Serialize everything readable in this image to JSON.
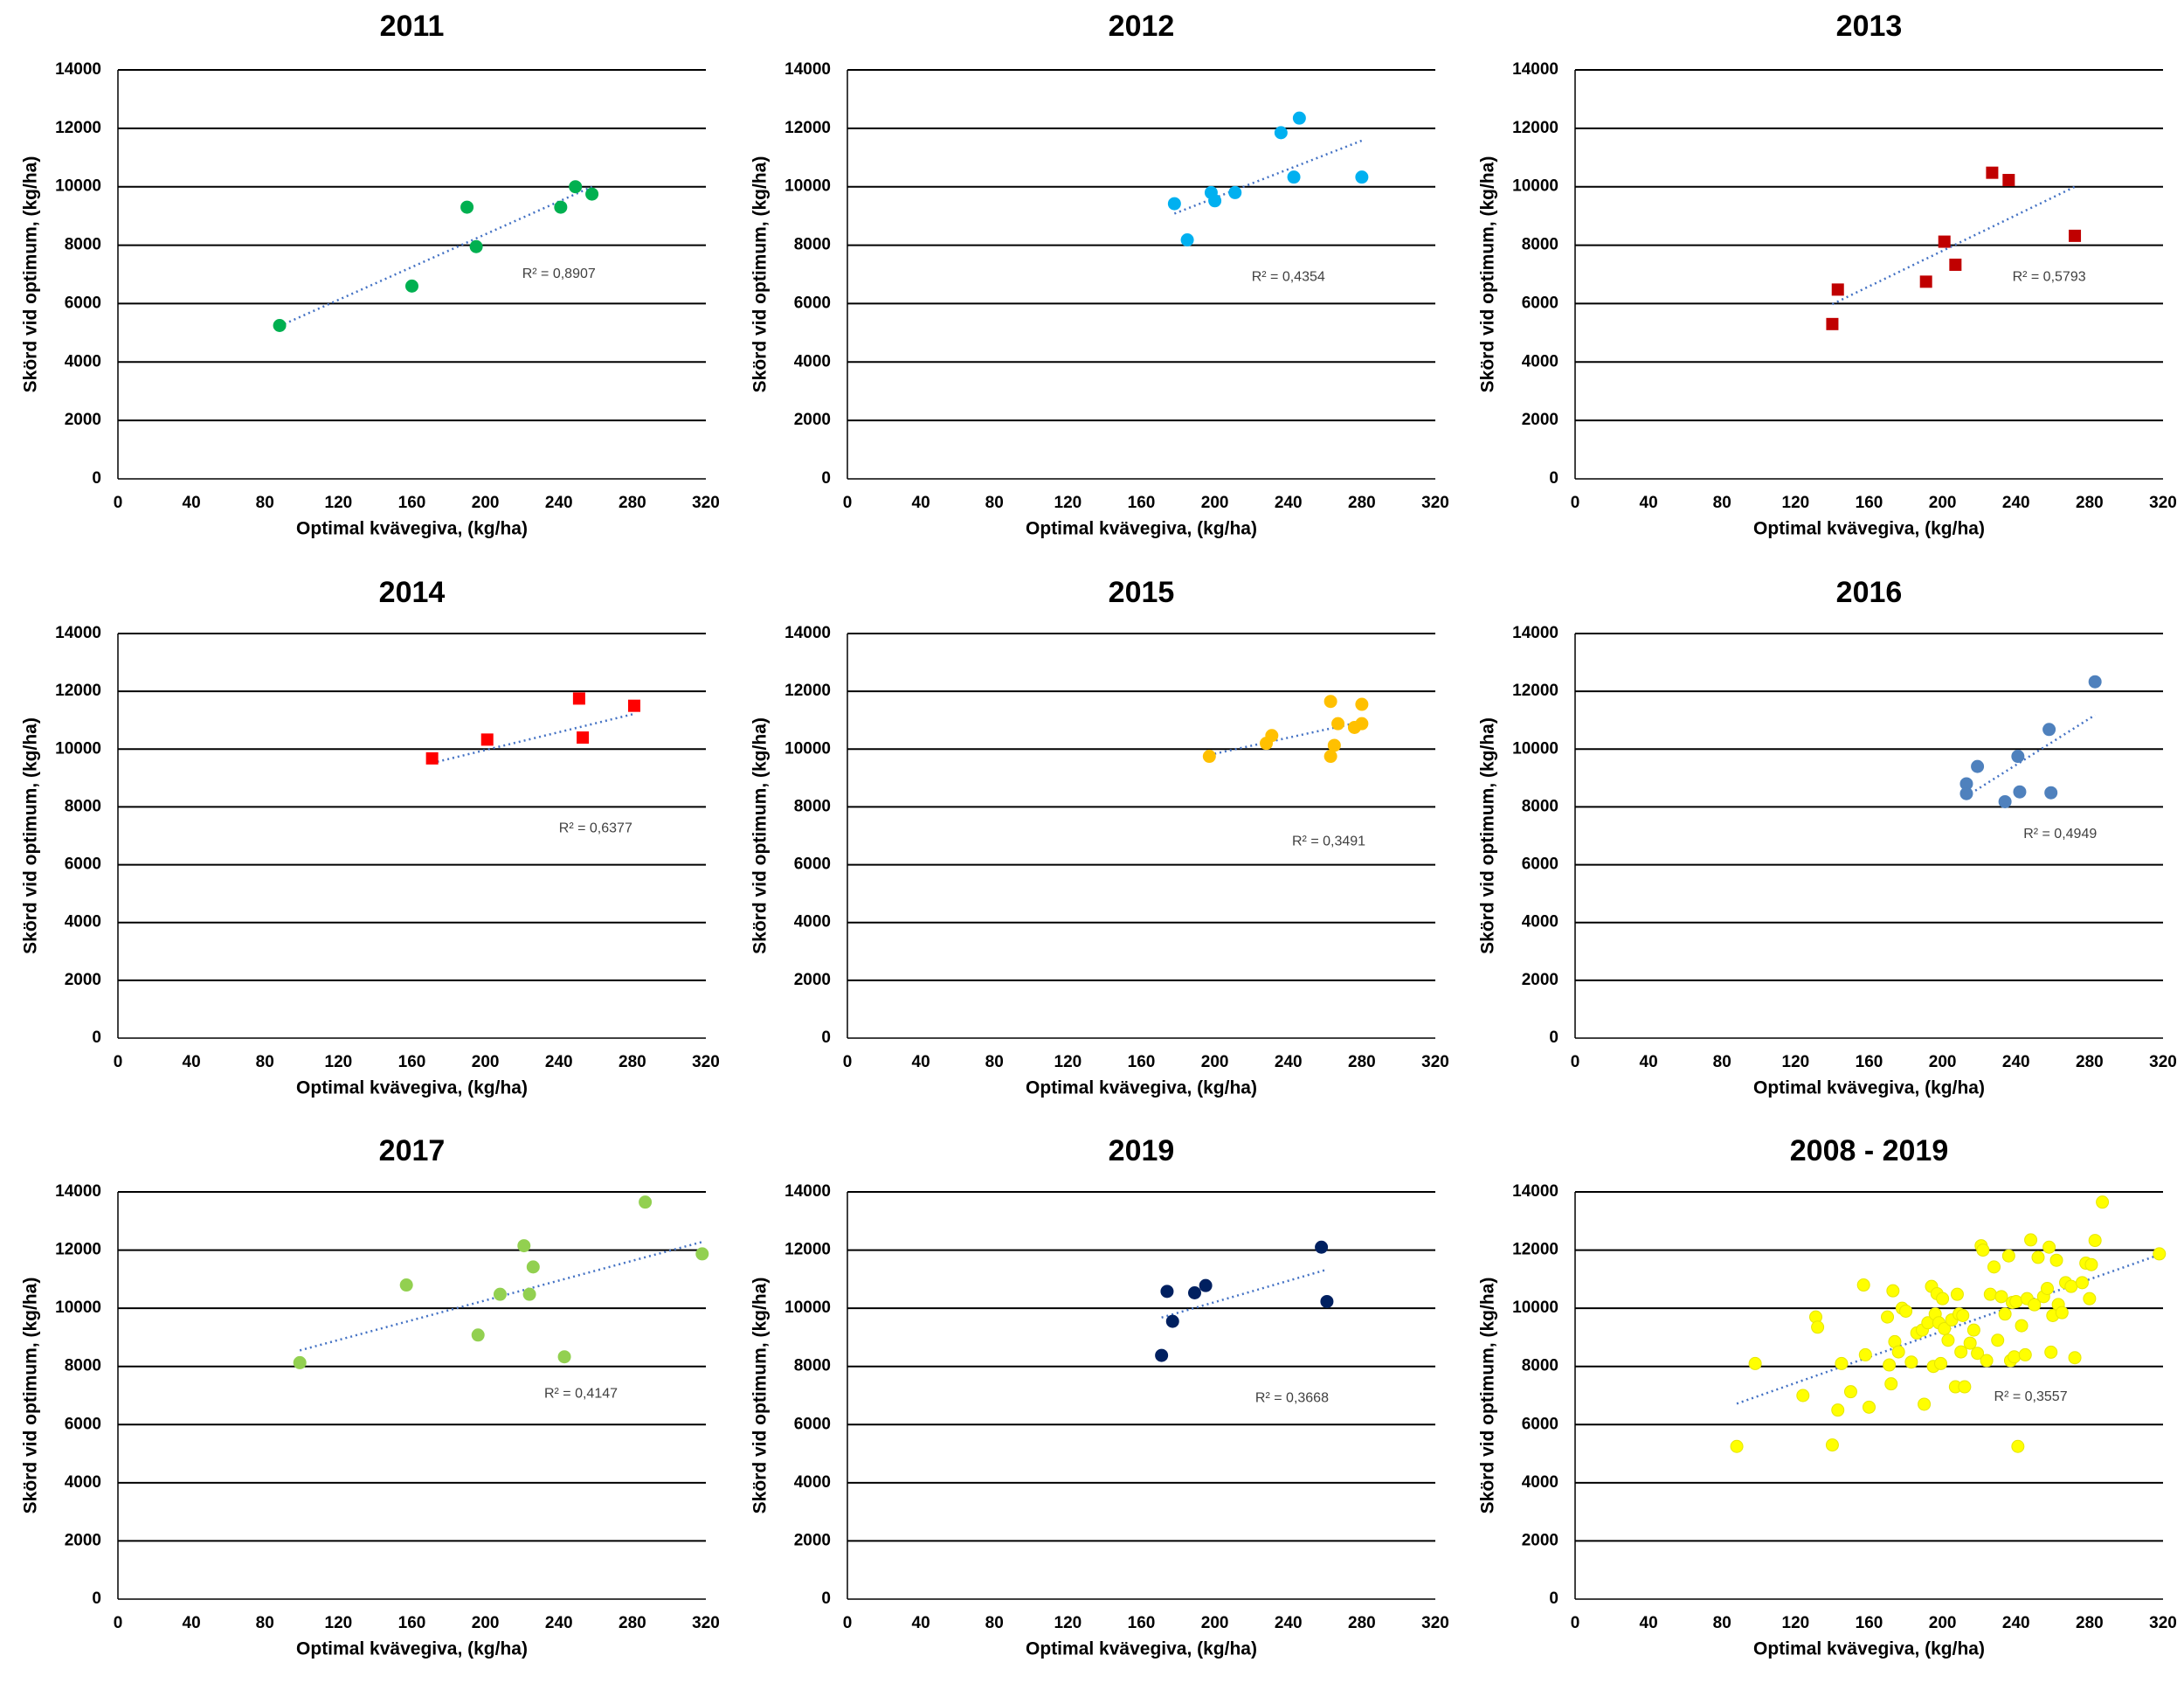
{
  "chart_data": [
    {
      "type": "scatter",
      "title": "2011",
      "xlabel": "Optimal kvävegiva, (kg/ha)",
      "ylabel": "Skörd vid optimum, (kg/ha)",
      "xlim": [
        0,
        320
      ],
      "ylim": [
        0,
        14000
      ],
      "xticks": [
        0,
        40,
        80,
        120,
        160,
        200,
        240,
        280,
        320
      ],
      "yticks": [
        0,
        2000,
        4000,
        6000,
        8000,
        10000,
        12000,
        14000
      ],
      "marker": "circle",
      "color": "#00b050",
      "x": [
        88,
        160,
        190,
        195,
        241,
        249,
        258
      ],
      "y": [
        5250,
        6600,
        9300,
        7950,
        9300,
        10000,
        9750
      ],
      "trendline": {
        "x": [
          88,
          258
        ],
        "y": [
          5230,
          10000
        ]
      },
      "r2_label": "R² = 0,8907",
      "r2_pos": [
        240,
        7000
      ]
    },
    {
      "type": "scatter",
      "title": "2012",
      "xlabel": "Optimal kvävegiva, (kg/ha)",
      "ylabel": "Skörd vid optimum, (kg/ha)",
      "xlim": [
        0,
        320
      ],
      "ylim": [
        0,
        14000
      ],
      "xticks": [
        0,
        40,
        80,
        120,
        160,
        200,
        240,
        280,
        320
      ],
      "yticks": [
        0,
        2000,
        4000,
        6000,
        8000,
        10000,
        12000,
        14000
      ],
      "marker": "circle",
      "color": "#00b0f0",
      "x": [
        178,
        185,
        198,
        200,
        211,
        236,
        243,
        246,
        280
      ],
      "y": [
        9420,
        8180,
        9800,
        9520,
        9800,
        11850,
        10330,
        12350,
        10330
      ],
      "trendline": {
        "x": [
          178,
          280
        ],
        "y": [
          9080,
          11580
        ]
      },
      "r2_label": "R² = 0,4354",
      "r2_pos": [
        240,
        6900
      ]
    },
    {
      "type": "scatter",
      "title": "2013",
      "xlabel": "Optimal kvävegiva, (kg/ha)",
      "ylabel": "Skörd vid optimum, (kg/ha)",
      "xlim": [
        0,
        320
      ],
      "ylim": [
        0,
        14000
      ],
      "xticks": [
        0,
        40,
        80,
        120,
        160,
        200,
        240,
        280,
        320
      ],
      "yticks": [
        0,
        2000,
        4000,
        6000,
        8000,
        10000,
        12000,
        14000
      ],
      "marker": "square",
      "color": "#c00000",
      "x": [
        140,
        143,
        191,
        201,
        207,
        227,
        236,
        272
      ],
      "y": [
        5300,
        6480,
        6750,
        8120,
        7330,
        10480,
        10230,
        8320
      ],
      "trendline": {
        "x": [
          140,
          272
        ],
        "y": [
          5980,
          10000
        ]
      },
      "r2_label": "R² = 0,5793",
      "r2_pos": [
        258,
        6900
      ]
    },
    {
      "type": "scatter",
      "title": "2014",
      "xlabel": "Optimal kvävegiva, (kg/ha)",
      "ylabel": "Skörd vid optimum, (kg/ha)",
      "xlim": [
        0,
        320
      ],
      "ylim": [
        0,
        14000
      ],
      "xticks": [
        0,
        40,
        80,
        120,
        160,
        200,
        240,
        280,
        320
      ],
      "yticks": [
        0,
        2000,
        4000,
        6000,
        8000,
        10000,
        12000,
        14000
      ],
      "marker": "square",
      "color": "#ff0000",
      "x": [
        171,
        201,
        251,
        253,
        281
      ],
      "y": [
        9680,
        10330,
        11750,
        10400,
        11500
      ],
      "trendline": {
        "x": [
          171,
          281
        ],
        "y": [
          9520,
          11220
        ]
      },
      "r2_label": "R² = 0,6377",
      "r2_pos": [
        260,
        7250
      ]
    },
    {
      "type": "scatter",
      "title": "2015",
      "xlabel": "Optimal kvävegiva, (kg/ha)",
      "ylabel": "Skörd vid optimum, (kg/ha)",
      "xlim": [
        0,
        320
      ],
      "ylim": [
        0,
        14000
      ],
      "xticks": [
        0,
        40,
        80,
        120,
        160,
        200,
        240,
        280,
        320
      ],
      "yticks": [
        0,
        2000,
        4000,
        6000,
        8000,
        10000,
        12000,
        14000
      ],
      "marker": "circle",
      "color": "#ffc000",
      "x": [
        197,
        228,
        231,
        263,
        263,
        265,
        267,
        276,
        280,
        280
      ],
      "y": [
        9750,
        10200,
        10470,
        11650,
        9750,
        10130,
        10880,
        10750,
        10880,
        11550
      ],
      "trendline": {
        "x": [
          197,
          280
        ],
        "y": [
          9800,
          10950
        ]
      },
      "r2_label": "R² = 0,3491",
      "r2_pos": [
        262,
        6800
      ]
    },
    {
      "type": "scatter",
      "title": "2016",
      "xlabel": "Optimal kvävegiva, (kg/ha)",
      "ylabel": "Skörd vid optimum, (kg/ha)",
      "xlim": [
        0,
        320
      ],
      "ylim": [
        0,
        14000
      ],
      "xticks": [
        0,
        40,
        80,
        120,
        160,
        200,
        240,
        280,
        320
      ],
      "yticks": [
        0,
        2000,
        4000,
        6000,
        8000,
        10000,
        12000,
        14000
      ],
      "marker": "circle",
      "color": "#4f81bd",
      "x": [
        213,
        213,
        219,
        234,
        241,
        242,
        258,
        259,
        283
      ],
      "y": [
        8800,
        8460,
        9400,
        8180,
        9750,
        8520,
        10680,
        8490,
        12330
      ],
      "trendline": {
        "x": [
          213,
          283
        ],
        "y": [
          8370,
          11180
        ]
      },
      "r2_label": "R² = 0,4949",
      "r2_pos": [
        264,
        7050
      ]
    },
    {
      "type": "scatter",
      "title": "2017",
      "xlabel": "Optimal kvävegiva, (kg/ha)",
      "ylabel": "Skörd vid optimum, (kg/ha)",
      "xlim": [
        0,
        320
      ],
      "ylim": [
        0,
        14000
      ],
      "xticks": [
        0,
        40,
        80,
        120,
        160,
        200,
        240,
        280,
        320
      ],
      "yticks": [
        0,
        2000,
        4000,
        6000,
        8000,
        10000,
        12000,
        14000
      ],
      "marker": "circle",
      "color": "#92d050",
      "x": [
        99,
        157,
        196,
        208,
        221,
        224,
        226,
        243,
        287,
        318
      ],
      "y": [
        8130,
        10800,
        9080,
        10480,
        12150,
        10480,
        11420,
        8330,
        13650,
        11870
      ],
      "trendline": {
        "x": [
          99,
          318
        ],
        "y": [
          8550,
          12280
        ]
      },
      "r2_label": "R² = 0,4147",
      "r2_pos": [
        252,
        7050
      ]
    },
    {
      "type": "scatter",
      "title": "2019",
      "xlabel": "Optimal kvävegiva, (kg/ha)",
      "ylabel": "Skörd vid optimum, (kg/ha)",
      "xlim": [
        0,
        320
      ],
      "ylim": [
        0,
        14000
      ],
      "xticks": [
        0,
        40,
        80,
        120,
        160,
        200,
        240,
        280,
        320
      ],
      "yticks": [
        0,
        2000,
        4000,
        6000,
        8000,
        10000,
        12000,
        14000
      ],
      "marker": "circle",
      "color": "#002060",
      "x": [
        171,
        174,
        177,
        189,
        195,
        258,
        261
      ],
      "y": [
        8380,
        10580,
        9550,
        10530,
        10780,
        12100,
        10230
      ],
      "trendline": {
        "x": [
          171,
          261
        ],
        "y": [
          9680,
          11330
        ]
      },
      "r2_label": "R² = 0,3668",
      "r2_pos": [
        242,
        6900
      ]
    },
    {
      "type": "scatter",
      "title": "2008 - 2019",
      "xlabel": "Optimal kvävegiva, (kg/ha)",
      "ylabel": "Skörd vid optimum, (kg/ha)",
      "xlim": [
        0,
        320
      ],
      "ylim": [
        0,
        14000
      ],
      "xticks": [
        0,
        40,
        80,
        120,
        160,
        200,
        240,
        280,
        320
      ],
      "yticks": [
        0,
        2000,
        4000,
        6000,
        8000,
        10000,
        12000,
        14000
      ],
      "marker": "circle",
      "color": "#ffff00",
      "x": [
        88,
        98,
        124,
        131,
        132,
        140,
        143,
        145,
        150,
        157,
        158,
        160,
        170,
        171,
        172,
        173,
        174,
        176,
        178,
        180,
        183,
        186,
        189,
        190,
        192,
        194,
        195,
        196,
        197,
        198,
        199,
        200,
        201,
        203,
        205,
        207,
        208,
        209,
        210,
        211,
        212,
        215,
        217,
        219,
        221,
        222,
        224,
        226,
        228,
        230,
        232,
        234,
        236,
        237,
        238,
        239,
        240,
        241,
        243,
        245,
        246,
        248,
        250,
        252,
        255,
        257,
        258,
        259,
        260,
        262,
        263,
        265,
        267,
        270,
        272,
        276,
        278,
        280,
        281,
        283,
        287,
        318
      ],
      "y": [
        5250,
        8100,
        7000,
        9700,
        9350,
        5300,
        6500,
        8100,
        7130,
        10800,
        8400,
        6600,
        9700,
        8050,
        7400,
        10600,
        8850,
        8500,
        10000,
        9900,
        8150,
        9150,
        9250,
        6700,
        9500,
        10750,
        8000,
        9800,
        10500,
        9500,
        8100,
        10330,
        9300,
        8900,
        9600,
        7300,
        10480,
        9800,
        8500,
        9750,
        7300,
        8800,
        9250,
        8450,
        12150,
        12000,
        8200,
        10480,
        11420,
        8900,
        10400,
        9800,
        11800,
        8200,
        10200,
        8330,
        10230,
        5250,
        9400,
        8400,
        10330,
        12350,
        10120,
        11750,
        10400,
        10680,
        12100,
        8490,
        9750,
        11650,
        10130,
        9850,
        10880,
        10750,
        8300,
        10880,
        11550,
        10330,
        11500,
        12330,
        13650,
        11870
      ],
      "trendline": {
        "x": [
          88,
          318
        ],
        "y": [
          6720,
          11840
        ]
      },
      "r2_label": "R² = 0,3557",
      "r2_pos": [
        248,
        6950
      ]
    }
  ]
}
